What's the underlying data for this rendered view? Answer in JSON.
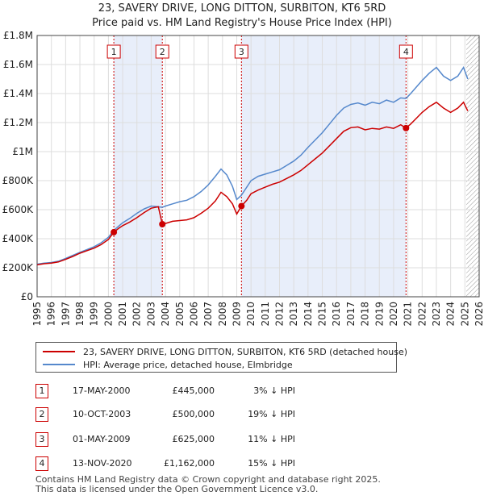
{
  "chart_data": {
    "type": "line",
    "title": "23, SAVERY DRIVE, LONG DITTON, SURBITON, KT6 5RD",
    "subtitle": "Price paid vs. HM Land Registry's House Price Index (HPI)",
    "xlabel": "",
    "ylabel": "",
    "xlim": [
      1995,
      2026
    ],
    "ylim": [
      0,
      1800000
    ],
    "y_ticks": [
      {
        "value": 0,
        "label": "£0"
      },
      {
        "value": 200000,
        "label": "£200K"
      },
      {
        "value": 400000,
        "label": "£400K"
      },
      {
        "value": 600000,
        "label": "£600K"
      },
      {
        "value": 800000,
        "label": "£800K"
      },
      {
        "value": 1000000,
        "label": "£1M"
      },
      {
        "value": 1200000,
        "label": "£1.2M"
      },
      {
        "value": 1400000,
        "label": "£1.4M"
      },
      {
        "value": 1600000,
        "label": "£1.6M"
      },
      {
        "value": 1800000,
        "label": "£1.8M"
      }
    ],
    "x_ticks": [
      "1995",
      "1996",
      "1997",
      "1998",
      "1999",
      "2000",
      "2001",
      "2002",
      "2003",
      "2004",
      "2005",
      "2006",
      "2007",
      "2008",
      "2009",
      "2010",
      "2011",
      "2012",
      "2013",
      "2014",
      "2015",
      "2016",
      "2017",
      "2018",
      "2019",
      "2020",
      "2021",
      "2022",
      "2023",
      "2024",
      "2025",
      "2026"
    ],
    "grid": true,
    "shaded_regions": [
      [
        2000.38,
        2003.78
      ],
      [
        2009.33,
        2020.87
      ]
    ],
    "hatched_after": 2025.1,
    "series": [
      {
        "name": "23, SAVERY DRIVE, LONG DITTON, SURBITON, KT6 5RD (detached house)",
        "color": "#cc0000",
        "points": [
          [
            1995.0,
            220000
          ],
          [
            1995.5,
            228000
          ],
          [
            1996.0,
            232000
          ],
          [
            1996.5,
            240000
          ],
          [
            1997.0,
            258000
          ],
          [
            1997.5,
            278000
          ],
          [
            1998.0,
            300000
          ],
          [
            1998.5,
            318000
          ],
          [
            1999.0,
            335000
          ],
          [
            1999.5,
            360000
          ],
          [
            2000.0,
            395000
          ],
          [
            2000.38,
            445000
          ],
          [
            2000.7,
            470000
          ],
          [
            2001.0,
            490000
          ],
          [
            2001.5,
            515000
          ],
          [
            2002.0,
            545000
          ],
          [
            2002.5,
            580000
          ],
          [
            2003.0,
            610000
          ],
          [
            2003.5,
            620000
          ],
          [
            2003.78,
            500000
          ],
          [
            2004.0,
            505000
          ],
          [
            2004.5,
            520000
          ],
          [
            2005.0,
            525000
          ],
          [
            2005.5,
            530000
          ],
          [
            2006.0,
            545000
          ],
          [
            2006.5,
            575000
          ],
          [
            2007.0,
            610000
          ],
          [
            2007.5,
            660000
          ],
          [
            2007.9,
            720000
          ],
          [
            2008.3,
            690000
          ],
          [
            2008.7,
            640000
          ],
          [
            2009.0,
            570000
          ],
          [
            2009.33,
            625000
          ],
          [
            2009.7,
            665000
          ],
          [
            2010.0,
            710000
          ],
          [
            2010.5,
            735000
          ],
          [
            2011.0,
            755000
          ],
          [
            2011.5,
            775000
          ],
          [
            2012.0,
            790000
          ],
          [
            2012.5,
            815000
          ],
          [
            2013.0,
            840000
          ],
          [
            2013.5,
            870000
          ],
          [
            2014.0,
            910000
          ],
          [
            2014.5,
            950000
          ],
          [
            2015.0,
            990000
          ],
          [
            2015.5,
            1040000
          ],
          [
            2016.0,
            1090000
          ],
          [
            2016.5,
            1140000
          ],
          [
            2017.0,
            1165000
          ],
          [
            2017.5,
            1170000
          ],
          [
            2018.0,
            1150000
          ],
          [
            2018.5,
            1160000
          ],
          [
            2019.0,
            1155000
          ],
          [
            2019.5,
            1170000
          ],
          [
            2020.0,
            1160000
          ],
          [
            2020.5,
            1185000
          ],
          [
            2020.87,
            1162000
          ],
          [
            2021.2,
            1190000
          ],
          [
            2021.6,
            1230000
          ],
          [
            2022.0,
            1270000
          ],
          [
            2022.5,
            1310000
          ],
          [
            2023.0,
            1340000
          ],
          [
            2023.5,
            1300000
          ],
          [
            2024.0,
            1270000
          ],
          [
            2024.5,
            1300000
          ],
          [
            2024.9,
            1340000
          ],
          [
            2025.2,
            1280000
          ]
        ]
      },
      {
        "name": "HPI: Average price, detached house, Elmbridge",
        "color": "#5588cc",
        "points": [
          [
            1995.0,
            225000
          ],
          [
            1995.5,
            232000
          ],
          [
            1996.0,
            236000
          ],
          [
            1996.5,
            245000
          ],
          [
            1997.0,
            264000
          ],
          [
            1997.5,
            285000
          ],
          [
            1998.0,
            306000
          ],
          [
            1998.5,
            325000
          ],
          [
            1999.0,
            345000
          ],
          [
            1999.5,
            372000
          ],
          [
            2000.0,
            410000
          ],
          [
            2000.38,
            458000
          ],
          [
            2000.7,
            485000
          ],
          [
            2001.0,
            510000
          ],
          [
            2001.5,
            540000
          ],
          [
            2002.0,
            575000
          ],
          [
            2002.5,
            605000
          ],
          [
            2003.0,
            625000
          ],
          [
            2003.5,
            620000
          ],
          [
            2003.78,
            616000
          ],
          [
            2004.0,
            625000
          ],
          [
            2004.5,
            640000
          ],
          [
            2005.0,
            655000
          ],
          [
            2005.5,
            665000
          ],
          [
            2006.0,
            690000
          ],
          [
            2006.5,
            725000
          ],
          [
            2007.0,
            770000
          ],
          [
            2007.5,
            830000
          ],
          [
            2007.9,
            880000
          ],
          [
            2008.3,
            840000
          ],
          [
            2008.7,
            760000
          ],
          [
            2009.0,
            670000
          ],
          [
            2009.33,
            700000
          ],
          [
            2009.7,
            755000
          ],
          [
            2010.0,
            800000
          ],
          [
            2010.5,
            830000
          ],
          [
            2011.0,
            845000
          ],
          [
            2011.5,
            860000
          ],
          [
            2012.0,
            875000
          ],
          [
            2012.5,
            905000
          ],
          [
            2013.0,
            935000
          ],
          [
            2013.5,
            975000
          ],
          [
            2014.0,
            1030000
          ],
          [
            2014.5,
            1080000
          ],
          [
            2015.0,
            1130000
          ],
          [
            2015.5,
            1190000
          ],
          [
            2016.0,
            1250000
          ],
          [
            2016.5,
            1300000
          ],
          [
            2017.0,
            1325000
          ],
          [
            2017.5,
            1335000
          ],
          [
            2018.0,
            1320000
          ],
          [
            2018.5,
            1340000
          ],
          [
            2019.0,
            1330000
          ],
          [
            2019.5,
            1355000
          ],
          [
            2020.0,
            1340000
          ],
          [
            2020.5,
            1370000
          ],
          [
            2020.87,
            1366000
          ],
          [
            2021.2,
            1400000
          ],
          [
            2021.6,
            1445000
          ],
          [
            2022.0,
            1490000
          ],
          [
            2022.5,
            1540000
          ],
          [
            2023.0,
            1580000
          ],
          [
            2023.5,
            1520000
          ],
          [
            2024.0,
            1490000
          ],
          [
            2024.5,
            1520000
          ],
          [
            2024.9,
            1580000
          ],
          [
            2025.2,
            1500000
          ]
        ]
      }
    ],
    "sales_markers": [
      {
        "label": "1",
        "x": 2000.38,
        "y": 445000
      },
      {
        "label": "2",
        "x": 2003.78,
        "y": 500000
      },
      {
        "label": "3",
        "x": 2009.33,
        "y": 625000
      },
      {
        "label": "4",
        "x": 2020.87,
        "y": 1162000
      }
    ]
  },
  "legend": {
    "items": [
      {
        "label": "23, SAVERY DRIVE, LONG DITTON, SURBITON, KT6 5RD (detached house)",
        "color": "#cc0000"
      },
      {
        "label": "HPI: Average price, detached house, Elmbridge",
        "color": "#5588cc"
      }
    ]
  },
  "sales": [
    {
      "num": "1",
      "date": "17-MAY-2000",
      "price": "£445,000",
      "hpi": "3% ↓ HPI"
    },
    {
      "num": "2",
      "date": "10-OCT-2003",
      "price": "£500,000",
      "hpi": "19% ↓ HPI"
    },
    {
      "num": "3",
      "date": "01-MAY-2009",
      "price": "£625,000",
      "hpi": "11% ↓ HPI"
    },
    {
      "num": "4",
      "date": "13-NOV-2020",
      "price": "£1,162,000",
      "hpi": "15% ↓ HPI"
    }
  ],
  "footer": {
    "line1": "Contains HM Land Registry data © Crown copyright and database right 2025.",
    "line2": "This data is licensed under the Open Government Licence v3.0."
  }
}
